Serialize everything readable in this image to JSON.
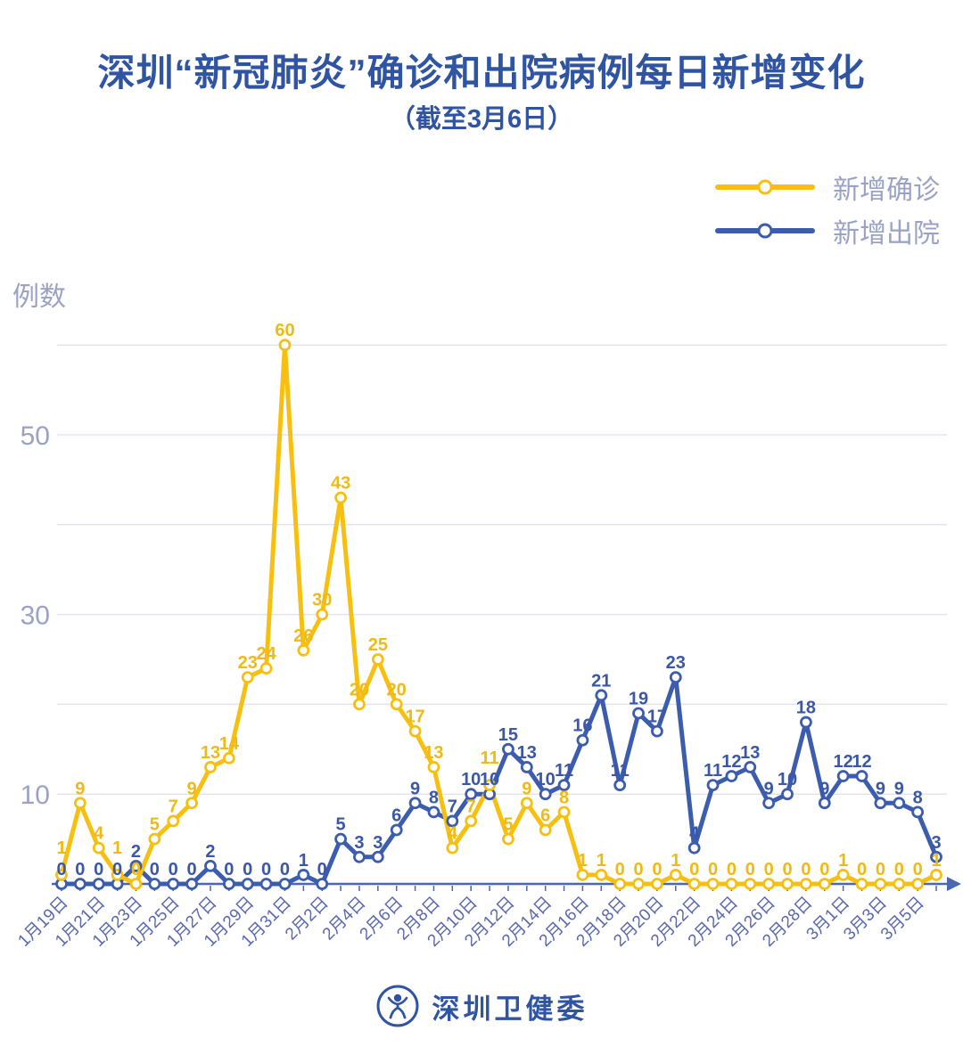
{
  "title": "深圳“新冠肺炎”确诊和出院病例每日新增变化",
  "subtitle": "（截至3月6日）",
  "legend": {
    "items": [
      {
        "label": "新增确诊",
        "key": "confirmed"
      },
      {
        "label": "新增出院",
        "key": "discharged"
      }
    ]
  },
  "footer": {
    "text": "深圳卫健委",
    "logo": "shenzhen-health-commission-seal"
  },
  "colors": {
    "confirmed": "#F7C011",
    "discharged": "#3C5CAE",
    "confirmed-label": "#F0BA16",
    "discharged-label": "#3A57A8",
    "title": "#2F54A3",
    "axis": "#4A67B5",
    "x-label": "#5A68AE",
    "y-label": "#9AA2C6",
    "gridline": "#E4E4EE",
    "legend-text": "#9AA2C6"
  },
  "chart_data": {
    "type": "line",
    "title": "深圳“新冠肺炎”确诊和出院病例每日新增变化",
    "subtitle": "（截至3月6日）",
    "ylabel": "例数",
    "xlabel": "",
    "categories": [
      "1月19日",
      "1月20日",
      "1月21日",
      "1月22日",
      "1月23日",
      "1月24日",
      "1月25日",
      "1月26日",
      "1月27日",
      "1月28日",
      "1月29日",
      "1月30日",
      "1月31日",
      "2月1日",
      "2月2日",
      "2月3日",
      "2月4日",
      "2月5日",
      "2月6日",
      "2月7日",
      "2月8日",
      "2月9日",
      "2月10日",
      "2月11日",
      "2月12日",
      "2月13日",
      "2月14日",
      "2月15日",
      "2月16日",
      "2月17日",
      "2月18日",
      "2月19日",
      "2月20日",
      "2月21日",
      "2月22日",
      "2月23日",
      "2月24日",
      "2月25日",
      "2月26日",
      "2月27日",
      "2月28日",
      "2月29日",
      "3月1日",
      "3月2日",
      "3月3日",
      "3月4日",
      "3月5日",
      "3月6日"
    ],
    "series": [
      {
        "name": "新增确诊",
        "color": "#F7C011",
        "label_color": "#F0BA16",
        "values": [
          1,
          9,
          4,
          1,
          0,
          5,
          7,
          9,
          13,
          14,
          23,
          24,
          60,
          26,
          30,
          43,
          20,
          25,
          20,
          17,
          13,
          4,
          7,
          11,
          5,
          9,
          6,
          8,
          1,
          1,
          0,
          0,
          0,
          1,
          0,
          0,
          0,
          0,
          0,
          0,
          0,
          0,
          1,
          0,
          0,
          0,
          0,
          1
        ]
      },
      {
        "name": "新增出院",
        "color": "#3C5CAE",
        "label_color": "#3A57A8",
        "values": [
          0,
          0,
          0,
          0,
          2,
          0,
          0,
          0,
          2,
          0,
          0,
          0,
          0,
          1,
          0,
          5,
          3,
          3,
          6,
          9,
          8,
          7,
          10,
          10,
          15,
          13,
          10,
          11,
          16,
          21,
          11,
          19,
          17,
          23,
          4,
          11,
          12,
          13,
          9,
          10,
          18,
          9,
          12,
          12,
          9,
          9,
          8,
          3
        ]
      }
    ],
    "ylim": [
      0,
      60
    ],
    "yticks": [
      10,
      20,
      30,
      40,
      50,
      60
    ],
    "yticks_labeled": [
      10,
      30,
      50
    ],
    "x_label_every": 2,
    "grid": true,
    "legend_position": "top-right",
    "markers": "circle-white-fill",
    "point_labels": true
  }
}
